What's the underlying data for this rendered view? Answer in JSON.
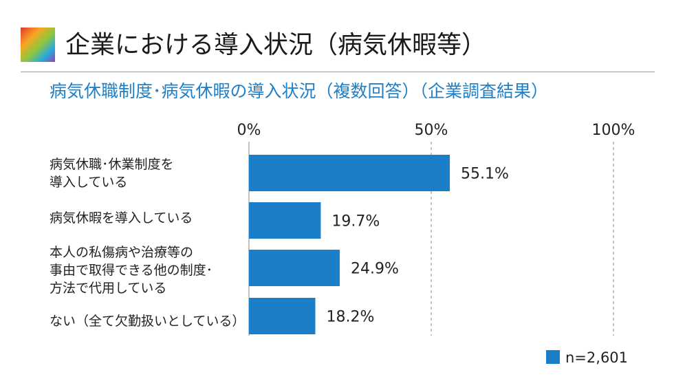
{
  "header": {
    "title": "企業における導入状況（病気休暇等）"
  },
  "chart_data": {
    "type": "bar",
    "orientation": "horizontal",
    "title": "病気休職制度･病気休暇の導入状況（複数回答）（企業調査結果）",
    "categories": [
      [
        "病気休職･休業制度を",
        "導入している"
      ],
      [
        "病気休暇を導入している"
      ],
      [
        "本人の私傷病や治療等の",
        "事由で取得できる他の制度･",
        "方法で代用している"
      ],
      [
        "ない（全て欠勤扱いとしている）"
      ]
    ],
    "values": [
      55.1,
      19.7,
      24.9,
      18.2
    ],
    "value_labels": [
      "55.1%",
      "19.7%",
      "24.9%",
      "18.2%"
    ],
    "xlim": [
      0,
      100
    ],
    "ticks": [
      0,
      50,
      100
    ],
    "tick_labels": [
      "0%",
      "50%",
      "100%"
    ],
    "grid": "dashed vertical at 50% and 100%",
    "legend": {
      "label": "n=2,601",
      "position": "bottom-right"
    },
    "colors": {
      "bar": "#1a7fc8",
      "axis": "#999999",
      "title": "#1f80c8"
    }
  }
}
